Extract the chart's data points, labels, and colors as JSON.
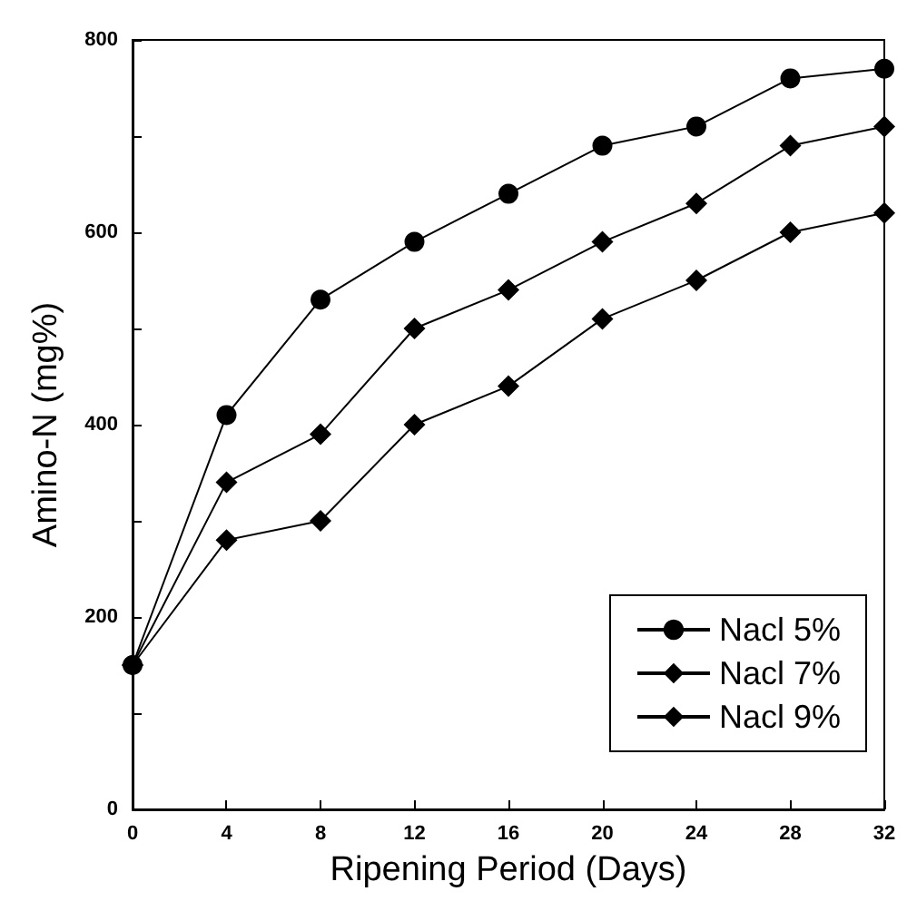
{
  "chart_data": {
    "type": "line",
    "xlabel": "Ripening Period (Days)",
    "ylabel": "Amino-N (mg%)",
    "x": [
      0,
      4,
      8,
      12,
      16,
      20,
      24,
      28,
      32
    ],
    "series": [
      {
        "name": "Nacl 5%",
        "color": "#000000",
        "marker": "circle",
        "values": [
          150,
          410,
          530,
          590,
          640,
          690,
          710,
          760,
          770
        ]
      },
      {
        "name": "Nacl 7%",
        "color": "#000000",
        "marker": "diamond",
        "values": [
          150,
          340,
          390,
          500,
          540,
          590,
          630,
          690,
          710
        ]
      },
      {
        "name": "Nacl 9%",
        "color": "#000000",
        "marker": "diamond",
        "values": [
          150,
          280,
          300,
          400,
          440,
          510,
          550,
          600,
          620
        ]
      }
    ],
    "xlim": [
      0,
      32
    ],
    "xticks": [
      0,
      4,
      8,
      12,
      16,
      20,
      24,
      28,
      32
    ],
    "ylim": [
      0,
      800
    ],
    "yticks": [
      0,
      {
        "value": 100,
        "label": null
      },
      200,
      {
        "value": 300,
        "label": null
      },
      400,
      {
        "value": 500,
        "label": null
      },
      600,
      {
        "value": 700,
        "label": null
      },
      800
    ],
    "grid": false,
    "legend": "bottom right",
    "line_style": "solid"
  }
}
